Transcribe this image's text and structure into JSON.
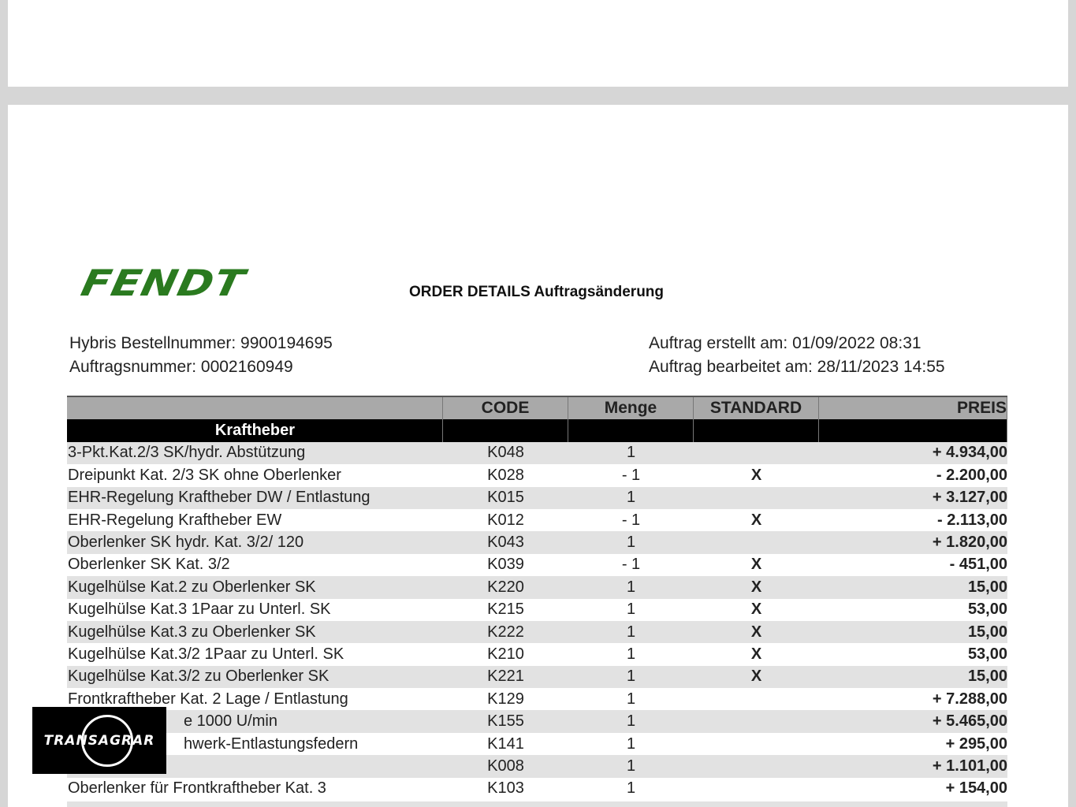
{
  "logo": "FENDT",
  "title": "ORDER DETAILS Auftragsänderung",
  "info": {
    "left": [
      "Hybris Bestellnummer: 9900194695",
      "Auftragsnummer: 0002160949"
    ],
    "right": [
      "Auftrag erstellt am: 01/09/2022 08:31",
      "Auftrag bearbeitet am: 28/11/2023 14:55"
    ]
  },
  "table": {
    "headers": [
      "CODE",
      "Menge",
      "STANDARD",
      "PREIS"
    ],
    "section": "Kraftheber",
    "rows": [
      {
        "name": "3-Pkt.Kat.2/3 SK/hydr. Abstützung",
        "code": "K048",
        "qty": "1",
        "price": "+ 4.934,00"
      },
      {
        "name": "Dreipunkt Kat. 2/3 SK ohne Oberlenker",
        "code": "K028",
        "qty": "- 1",
        "std": "X",
        "price": "- 2.200,00"
      },
      {
        "name": "EHR-Regelung Kraftheber DW / Entlastung",
        "code": "K015",
        "qty": "1",
        "price": "+ 3.127,00"
      },
      {
        "name": "EHR-Regelung Kraftheber EW",
        "code": "K012",
        "qty": "- 1",
        "std": "X",
        "price": "- 2.113,00"
      },
      {
        "name": "Oberlenker SK hydr. Kat. 3/2/ 120",
        "code": "K043",
        "qty": "1",
        "price": "+ 1.820,00"
      },
      {
        "name": "Oberlenker SK Kat. 3/2",
        "code": "K039",
        "qty": "- 1",
        "std": "X",
        "price": "- 451,00"
      },
      {
        "name": "Kugelhülse Kat.2 zu Oberlenker SK",
        "code": "K220",
        "qty": "1",
        "std": "X",
        "price": "15,00"
      },
      {
        "name": "Kugelhülse Kat.3 1Paar zu Unterl. SK",
        "code": "K215",
        "qty": "1",
        "std": "X",
        "price": "53,00"
      },
      {
        "name": "Kugelhülse Kat.3 zu Oberlenker SK",
        "code": "K222",
        "qty": "1",
        "std": "X",
        "price": "15,00"
      },
      {
        "name": "Kugelhülse Kat.3/2 1Paar zu Unterl. SK",
        "code": "K210",
        "qty": "1",
        "std": "X",
        "price": "53,00"
      },
      {
        "name": "Kugelhülse Kat.3/2 zu Oberlenker SK",
        "code": "K221",
        "qty": "1",
        "std": "X",
        "price": "15,00"
      },
      {
        "name": "Frontkraftheber Kat. 2 Lage / Entlastung",
        "code": "K129",
        "qty": "1",
        "price": "+ 7.288,00"
      },
      {
        "name": "e 1000 U/min",
        "code": "K155",
        "qty": "1",
        "price": "+ 5.465,00"
      },
      {
        "name": "hwerk-Entlastungsfedern",
        "code": "K141",
        "qty": "1",
        "price": "+ 295,00"
      },
      {
        "code": "K008",
        "qty": "1",
        "price": "+ 1.101,00"
      },
      {
        "name": "Oberlenker für Frontkraftheber Kat. 3",
        "code": "K103",
        "qty": "1",
        "price": "+ 154,00"
      }
    ]
  },
  "watermark": "TRANSAGRAR"
}
